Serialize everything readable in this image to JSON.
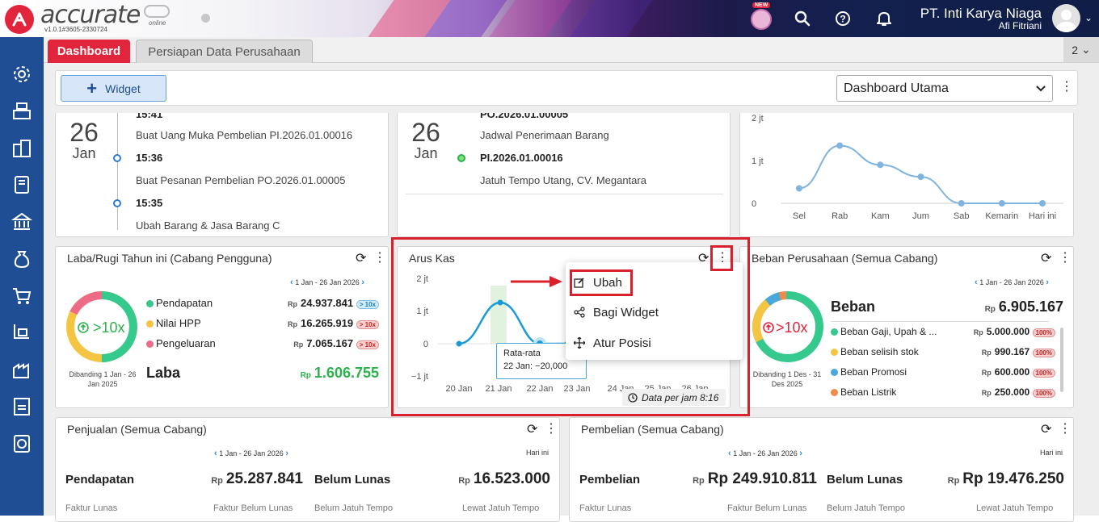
{
  "app": {
    "logo_text": "accurate",
    "logo_sub": "online",
    "version": "v1.0.1#3605-2330724",
    "new_badge": "NEW",
    "company": "PT. Inti Karya Niaga",
    "user": "Afi Fitriani"
  },
  "tabs": {
    "dashboard": "Dashboard",
    "persiapan": "Persiapan Data Perusahaan",
    "count": "2"
  },
  "toolbar": {
    "widget_label": "Widget",
    "dashboard_select": "Dashboard Utama"
  },
  "activity1": {
    "day": "26",
    "month": "Jan",
    "items": [
      {
        "time": "15:41",
        "desc": "Buat Uang Muka Pembelian PI.2026.01.00016"
      },
      {
        "time": "15:36",
        "desc": "Buat Pesanan Pembelian PO.2026.01.00005"
      },
      {
        "time": "15:35",
        "desc": "Ubah Barang & Jasa Barang C"
      }
    ]
  },
  "activity2": {
    "day": "26",
    "month": "Jan",
    "items": [
      {
        "ref": "PO.2026.01.00005",
        "desc": "Jadwal Penerimaan Barang"
      },
      {
        "ref": "PI.2026.01.00016",
        "desc": "Jatuh Tempo Utang, CV. Megantara"
      }
    ]
  },
  "weekly_chart": {
    "y_ticks": [
      "2 jt",
      "1 jt",
      "0"
    ],
    "categories": [
      "Sel",
      "Rab",
      "Kam",
      "Jum",
      "Sab",
      "Kemarin",
      "Hari ini"
    ],
    "values": [
      0.35,
      1.35,
      0.9,
      0.62,
      0,
      0,
      0
    ],
    "ylim": [
      0,
      2
    ]
  },
  "laba": {
    "title": "Laba/Rugi Tahun ini (Cabang Pengguna)",
    "date_range": "1 Jan - 26 Jan 2026",
    "ring_label": ">10x",
    "compare": "Dibanding 1 Jan - 26 Jan 2025",
    "rows": [
      {
        "label": "Pendapatan",
        "rp": "Rp",
        "value": "24.937.841",
        "pct": "> 10x",
        "color": "#35c98e"
      },
      {
        "label": "Nilai HPP",
        "rp": "Rp",
        "value": "16.265.919",
        "pct": "> 10x",
        "color": "#f4c542"
      },
      {
        "label": "Pengeluaran",
        "rp": "Rp",
        "value": "7.065.167",
        "pct": "> 10x",
        "color": "#ee6b88"
      }
    ],
    "total_label": "Laba",
    "total_rp": "Rp",
    "total_value": "1.606.755"
  },
  "arus_kas": {
    "title": "Arus Kas",
    "y_ticks": [
      "2 jt",
      "1 jt",
      "0",
      "−1 jt"
    ],
    "x_labels": [
      "20 Jan",
      "21 Jan",
      "22 Jan",
      "23 Jan",
      "24 Jan",
      "25 Jan",
      "26 Jan"
    ],
    "tooltip_title": "Rata-rata",
    "tooltip_value": "22 Jan: −20,000",
    "data_time": "Data per jam 8:16"
  },
  "menu": {
    "ubah": "Ubah",
    "bagi": "Bagi Widget",
    "atur": "Atur Posisi"
  },
  "beban": {
    "title": "Beban Perusahaan (Semua Cabang)",
    "date_range": "1 Jan - 26 Jan 2026",
    "ring_label": ">10x",
    "compare": "Dibanding 1 Des - 31 Des 2025",
    "total_label": "Beban",
    "total_rp": "Rp",
    "total_value": "6.905.167",
    "rows": [
      {
        "label": "Beban Gaji, Upah & ...",
        "rp": "Rp",
        "value": "5.000.000",
        "pct": "100%",
        "color": "#35c98e"
      },
      {
        "label": "Beban selisih stok",
        "rp": "Rp",
        "value": "990.167",
        "pct": "100%",
        "color": "#f4c542"
      },
      {
        "label": "Beban Promosi",
        "rp": "Rp",
        "value": "600.000",
        "pct": "100%",
        "color": "#4aa7d9"
      },
      {
        "label": "Beban Listrik",
        "rp": "Rp",
        "value": "250.000",
        "pct": "100%",
        "color": "#f08c4b"
      }
    ]
  },
  "penjualan": {
    "title": "Penjualan (Semua Cabang)",
    "date_range": "1 Jan - 26 Jan 2026",
    "today": "Hari ini",
    "label1": "Pendapatan",
    "rp1": "Rp",
    "value1": "25.287.841",
    "label2": "Belum Lunas",
    "rp2": "Rp",
    "value2": "16.523.000",
    "foot": [
      "Faktur Lunas",
      "Faktur Belum Lunas",
      "Belum Jatuh Tempo",
      "Lewat Jatuh Tempo"
    ]
  },
  "pembelian": {
    "title": "Pembelian (Semua Cabang)",
    "date_range": "1 Jan - 26 Jan 2026",
    "today": "Hari ini",
    "label1": "Pembelian",
    "rp1": "Rp",
    "value1": "Rp 249.910.811",
    "label2": "Belum Lunas",
    "rp2": "Rp",
    "value2": "Rp 19.476.250",
    "foot": [
      "Faktur Lunas",
      "Faktur Belum Lunas",
      "Belum Jatuh Tempo",
      "Lewat Jatuh Tempo"
    ]
  },
  "colors": {
    "brand_red": "#e1253c",
    "sidebar_blue": "#1f4e94",
    "green": "#2bb24c",
    "highlight_red": "#d9202d"
  }
}
